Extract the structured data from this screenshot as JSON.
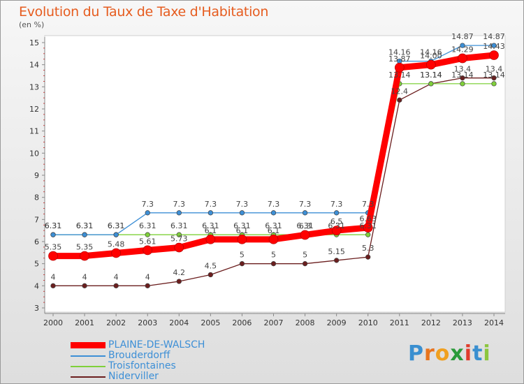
{
  "header": {
    "title": "Evolution du Taux de Taxe d'Habitation",
    "unit": "(en %)"
  },
  "brand": {
    "text": "Proxiti"
  },
  "chart_data": {
    "type": "line",
    "title": "Evolution du Taux de Taxe d'Habitation",
    "ylabel": "(en %)",
    "xlabel": "",
    "ylim": [
      3,
      15
    ],
    "yticks": [
      3,
      4,
      5,
      6,
      7,
      8,
      9,
      10,
      11,
      12,
      13,
      14,
      15
    ],
    "grid": false,
    "legend_position": "bottom-left",
    "x": [
      "2000",
      "2001",
      "2002",
      "2003",
      "2004",
      "2005",
      "2006",
      "2007",
      "2008",
      "2009",
      "2010",
      "2011",
      "2012",
      "2013",
      "2014"
    ],
    "series": [
      {
        "name": "PLAINE-DE-WALSCH",
        "color": "#ff0000",
        "values": [
          5.35,
          5.35,
          5.48,
          5.61,
          5.73,
          6.1,
          6.1,
          6.1,
          6.3,
          6.5,
          6.63,
          13.87,
          14.0,
          14.29,
          14.43
        ],
        "labels": [
          "5.35",
          "5.35",
          "5.48",
          "5.61",
          "5.73",
          "6.1",
          "6.1",
          "6.1",
          "6.3",
          "6.5",
          "6.63",
          "13.87",
          "14.00",
          "14.29",
          "14.43"
        ]
      },
      {
        "name": "Brouderdorff",
        "color": "#3d8fd6",
        "values": [
          6.31,
          6.31,
          6.31,
          7.3,
          7.3,
          7.3,
          7.3,
          7.3,
          7.3,
          7.3,
          7.3,
          14.16,
          14.16,
          14.87,
          14.87
        ],
        "labels": [
          "6.31",
          "6.31",
          "6.31",
          "7.3",
          "7.3",
          "7.3",
          "7.3",
          "7.3",
          "7.3",
          "7.3",
          "7.3",
          "14.16",
          "14.16",
          "14.87",
          "14.87"
        ]
      },
      {
        "name": "Troisfontaines",
        "color": "#7fd03a",
        "values": [
          6.31,
          6.31,
          6.31,
          6.31,
          6.31,
          6.31,
          6.31,
          6.31,
          6.31,
          6.31,
          6.31,
          13.14,
          13.14,
          13.14,
          13.14
        ],
        "labels": [
          "6.31",
          "6.31",
          "6.31",
          "6.31",
          "6.31",
          "6.31",
          "6.31",
          "6.31",
          "6.31",
          "6.31",
          "6.31",
          "13.14",
          "13.14",
          "13.14",
          "13.14"
        ]
      },
      {
        "name": "Niderviller",
        "color": "#6b1e1e",
        "values": [
          4,
          4,
          4,
          4,
          4.2,
          4.5,
          5,
          5,
          5,
          5.15,
          5.3,
          12.4,
          13.14,
          13.4,
          13.4
        ],
        "labels": [
          "4",
          "4",
          "4",
          "4",
          "4.2",
          "4.5",
          "5",
          "5",
          "5",
          "5.15",
          "5.3",
          "12.4",
          "13.14",
          "13.4",
          "13.4"
        ]
      }
    ]
  }
}
